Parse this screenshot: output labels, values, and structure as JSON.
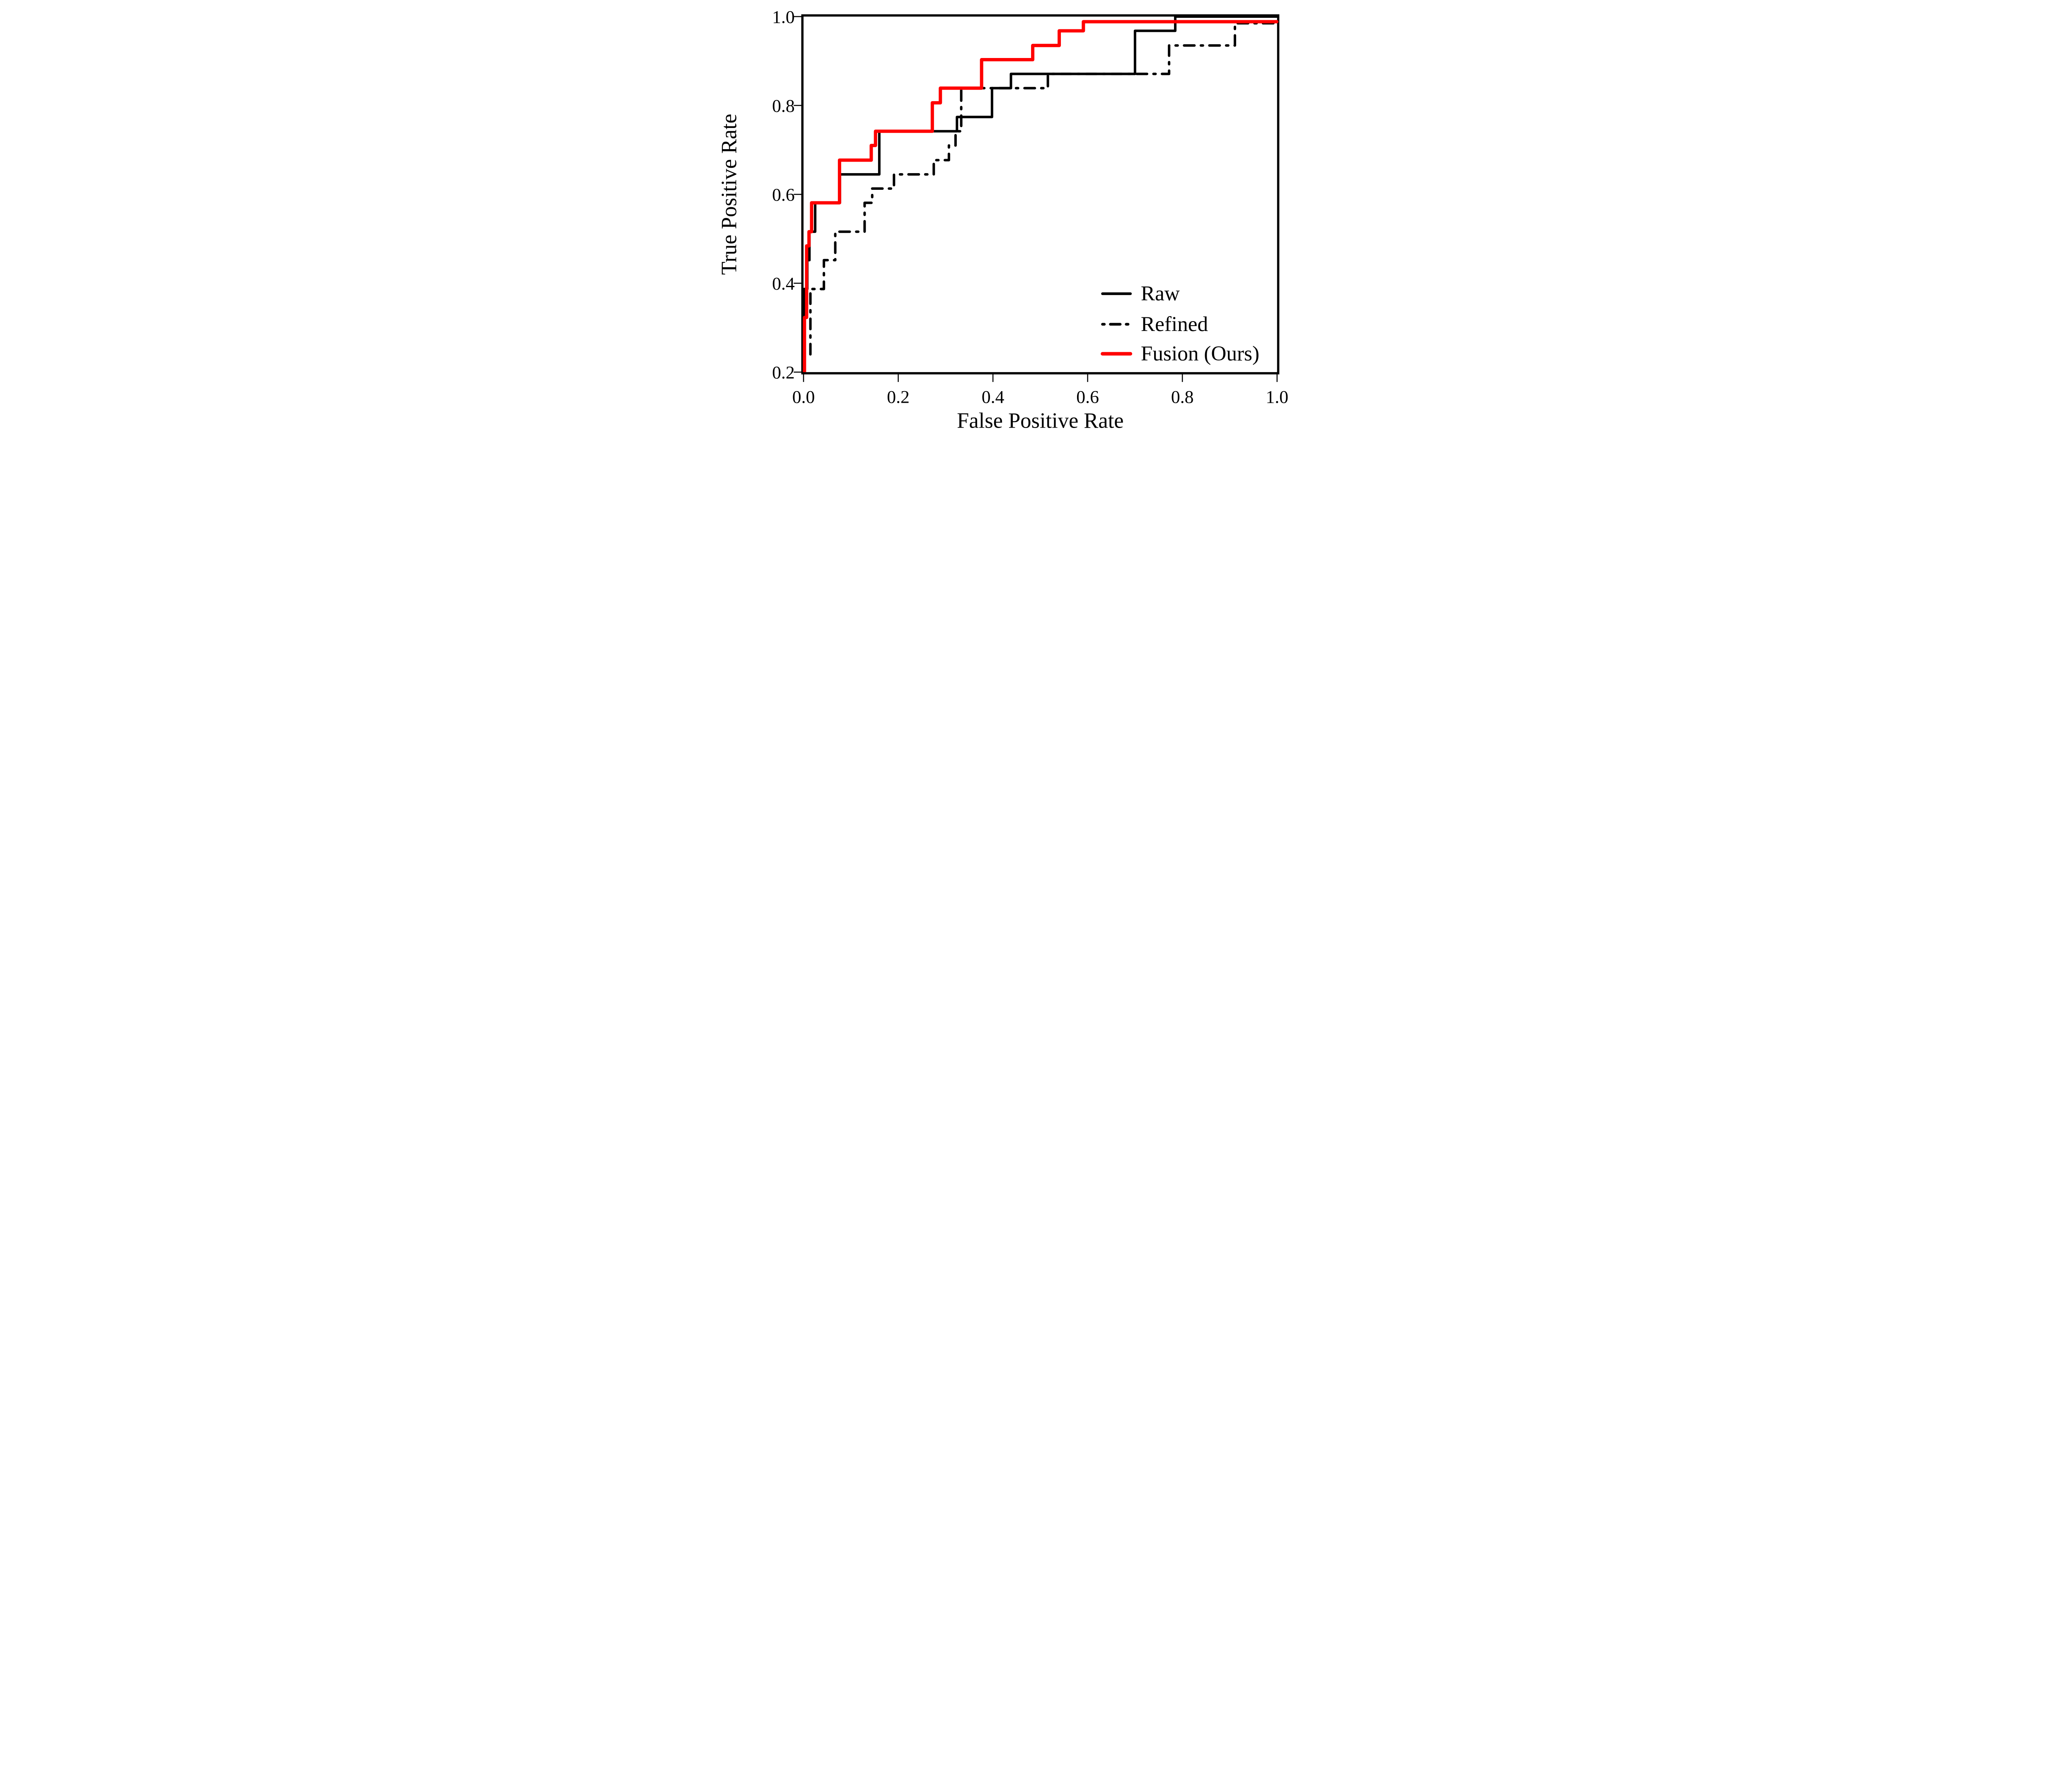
{
  "chart_data": {
    "type": "line",
    "subtype": "roc-step-curves",
    "xlabel": "False Positive Rate",
    "ylabel": "True Positive Rate",
    "xlim": [
      0.0,
      1.0
    ],
    "ylim": [
      0.2,
      1.0
    ],
    "xticks": [
      0.0,
      0.2,
      0.4,
      0.6,
      0.8,
      1.0
    ],
    "yticks": [
      0.2,
      0.4,
      0.6,
      0.8,
      1.0
    ],
    "xtick_labels": [
      "0.0",
      "0.2",
      "0.4",
      "0.6",
      "0.8",
      "1.0"
    ],
    "ytick_labels": [
      "0.2",
      "0.4",
      "0.6",
      "0.8",
      "1.0"
    ],
    "grid": false,
    "legend_position": "lower right",
    "series": [
      {
        "name": "Refined",
        "color": "#000000",
        "style": "dashdot",
        "width": 24,
        "points": [
          [
            0.0145,
            0.24
          ],
          [
            0.0145,
            0.387
          ],
          [
            0.043,
            0.387
          ],
          [
            0.043,
            0.452
          ],
          [
            0.067,
            0.452
          ],
          [
            0.067,
            0.516
          ],
          [
            0.129,
            0.516
          ],
          [
            0.129,
            0.581
          ],
          [
            0.145,
            0.581
          ],
          [
            0.145,
            0.613
          ],
          [
            0.191,
            0.613
          ],
          [
            0.191,
            0.645
          ],
          [
            0.275,
            0.645
          ],
          [
            0.275,
            0.677
          ],
          [
            0.307,
            0.677
          ],
          [
            0.307,
            0.71
          ],
          [
            0.321,
            0.71
          ],
          [
            0.321,
            0.742
          ],
          [
            0.333,
            0.742
          ],
          [
            0.333,
            0.839
          ],
          [
            0.516,
            0.839
          ],
          [
            0.516,
            0.871
          ],
          [
            0.772,
            0.871
          ],
          [
            0.772,
            0.935
          ],
          [
            0.911,
            0.935
          ],
          [
            0.911,
            0.985
          ],
          [
            0.998,
            0.985
          ]
        ]
      },
      {
        "name": "Raw",
        "color": "#000000",
        "style": "solid",
        "width": 24,
        "points": [
          [
            0.0015,
            0.2
          ],
          [
            0.0015,
            0.387
          ],
          [
            0.008,
            0.387
          ],
          [
            0.008,
            0.452
          ],
          [
            0.0125,
            0.452
          ],
          [
            0.0125,
            0.516
          ],
          [
            0.0246,
            0.516
          ],
          [
            0.0246,
            0.581
          ],
          [
            0.077,
            0.581
          ],
          [
            0.077,
            0.645
          ],
          [
            0.16,
            0.645
          ],
          [
            0.16,
            0.742
          ],
          [
            0.324,
            0.742
          ],
          [
            0.324,
            0.774
          ],
          [
            0.398,
            0.774
          ],
          [
            0.398,
            0.839
          ],
          [
            0.438,
            0.839
          ],
          [
            0.438,
            0.871
          ],
          [
            0.7,
            0.871
          ],
          [
            0.7,
            0.968
          ],
          [
            0.785,
            0.968
          ],
          [
            0.785,
            1.0
          ],
          [
            1.0,
            1.0
          ]
        ]
      },
      {
        "name": "Fusion (Ours)",
        "color": "#ff0000",
        "style": "solid",
        "width": 32,
        "points": [
          [
            0.002,
            0.2
          ],
          [
            0.002,
            0.323
          ],
          [
            0.0065,
            0.323
          ],
          [
            0.0065,
            0.484
          ],
          [
            0.0115,
            0.484
          ],
          [
            0.0115,
            0.516
          ],
          [
            0.017,
            0.516
          ],
          [
            0.017,
            0.581
          ],
          [
            0.076,
            0.581
          ],
          [
            0.076,
            0.677
          ],
          [
            0.143,
            0.677
          ],
          [
            0.143,
            0.71
          ],
          [
            0.152,
            0.71
          ],
          [
            0.152,
            0.742
          ],
          [
            0.272,
            0.742
          ],
          [
            0.272,
            0.806
          ],
          [
            0.289,
            0.806
          ],
          [
            0.289,
            0.839
          ],
          [
            0.376,
            0.839
          ],
          [
            0.376,
            0.903
          ],
          [
            0.484,
            0.903
          ],
          [
            0.484,
            0.935
          ],
          [
            0.54,
            0.935
          ],
          [
            0.54,
            0.968
          ],
          [
            0.591,
            0.968
          ],
          [
            0.591,
            0.9885
          ],
          [
            0.9995,
            0.9885
          ]
        ]
      }
    ],
    "legend": [
      {
        "label": "Raw",
        "color": "#000000",
        "style": "solid",
        "width": 26
      },
      {
        "label": "Refined",
        "color": "#000000",
        "style": "dashdot",
        "width": 26
      },
      {
        "label": "Fusion (Ours)",
        "color": "#ff0000",
        "style": "solid",
        "width": 34
      }
    ]
  },
  "colors": {
    "accent": "#ff0000",
    "foreground": "#000000",
    "background": "#ffffff"
  }
}
